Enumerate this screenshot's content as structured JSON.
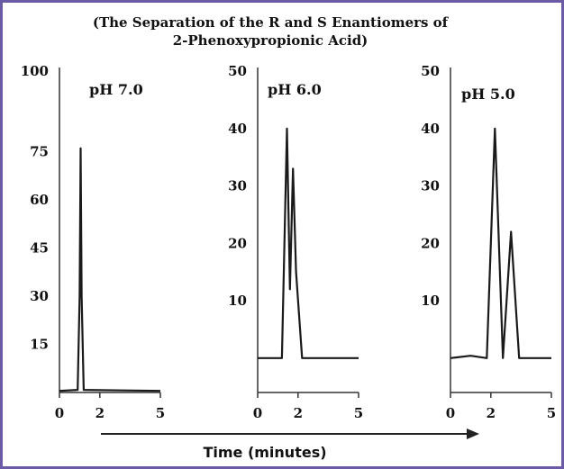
{
  "title_line1": "(The Separation of the R and S Enantiomers of",
  "title_line2": "2-Phenoxypropionic Acid)",
  "x_axis_label": "Time (minutes)",
  "chart_data": [
    {
      "type": "line",
      "label": "pH 7.0",
      "xlim": [
        0,
        5
      ],
      "ylim": [
        0,
        100
      ],
      "x_ticks": [
        "0",
        "2",
        "5"
      ],
      "y_ticks": [
        "100",
        "75",
        "60",
        "45",
        "30",
        "15"
      ],
      "series": [
        {
          "x": [
            0,
            0.9,
            1.0,
            1.05,
            1.1,
            1.2,
            5
          ],
          "y": [
            0.5,
            0.8,
            30,
            76,
            30,
            0.8,
            0.5
          ]
        }
      ]
    },
    {
      "type": "line",
      "label": "pH 6.0",
      "xlim": [
        0,
        5
      ],
      "ylim": [
        -6,
        50
      ],
      "x_ticks": [
        "0",
        "2",
        "5"
      ],
      "y_ticks": [
        "50",
        "40",
        "30",
        "20",
        "10"
      ],
      "series": [
        {
          "x": [
            0,
            1.2,
            1.45,
            1.6,
            1.75,
            1.9,
            2.2,
            5
          ],
          "y": [
            0,
            0,
            40,
            12,
            33,
            15,
            0,
            0
          ]
        }
      ]
    },
    {
      "type": "line",
      "label": "pH 5.0",
      "xlim": [
        0,
        5
      ],
      "ylim": [
        -6,
        50
      ],
      "x_ticks": [
        "0",
        "2",
        "5"
      ],
      "y_ticks": [
        "50",
        "40",
        "30",
        "20",
        "10"
      ],
      "series": [
        {
          "x": [
            0,
            1.0,
            1.8,
            2.2,
            2.6,
            3.0,
            3.4,
            5
          ],
          "y": [
            0,
            0.4,
            0,
            40,
            0,
            22,
            0,
            0
          ]
        }
      ]
    }
  ]
}
